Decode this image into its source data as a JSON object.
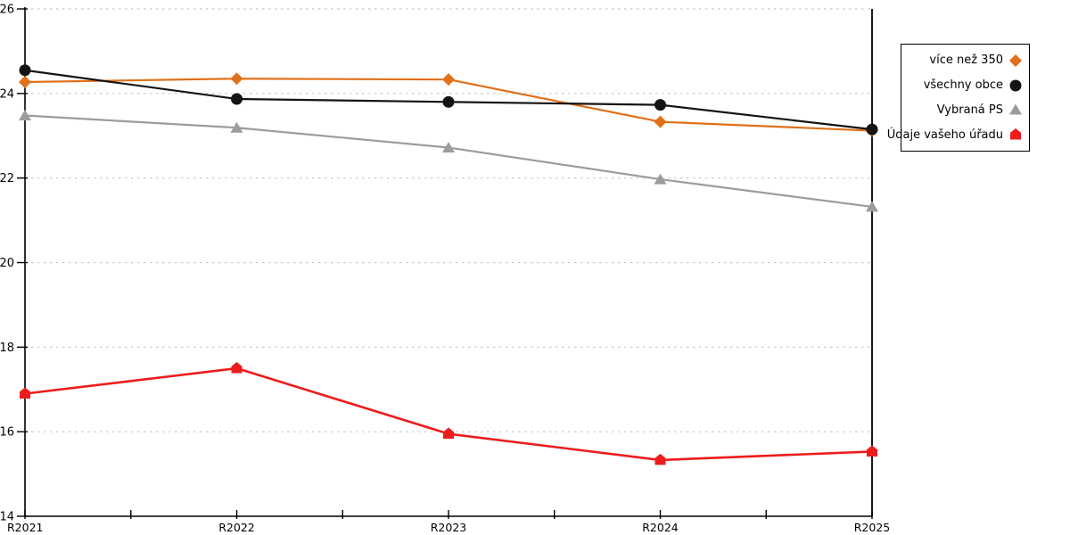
{
  "chart_data": {
    "type": "line",
    "categories": [
      "R2021",
      "R2022",
      "R2023",
      "R2024",
      "R2025"
    ],
    "xlabel": "",
    "ylabel": "",
    "ylim": [
      14,
      26
    ],
    "yticks": [
      14,
      16,
      18,
      20,
      22,
      24,
      26
    ],
    "grid": "horizontal dotted gridlines at every y tick, plot bounded by left axis, bottom axis and right border line",
    "legend_position": "outside top-right, boxed, text right-aligned with marker at right",
    "series": [
      {
        "name": "více než 350",
        "marker": "diamond",
        "color": "#E0701A",
        "values": [
          24.27,
          24.35,
          24.33,
          23.33,
          23.12
        ]
      },
      {
        "name": "všechny obce",
        "marker": "circle",
        "color": "#141414",
        "values": [
          24.55,
          23.87,
          23.8,
          23.73,
          23.15
        ]
      },
      {
        "name": "Vybraná PS",
        "marker": "triangle",
        "color": "#9C9C9C",
        "values": [
          23.48,
          23.19,
          22.72,
          21.97,
          21.32
        ]
      },
      {
        "name": "Údaje vašeho úřadu",
        "marker": "pentagon",
        "color": "#EE1C1C",
        "values": [
          16.9,
          17.5,
          15.95,
          15.33,
          15.53
        ]
      }
    ]
  },
  "colors": {
    "axis": "#000000",
    "gridline": "#C6C6C6",
    "tick_label": "#000000",
    "background": "#FFFFFF"
  }
}
